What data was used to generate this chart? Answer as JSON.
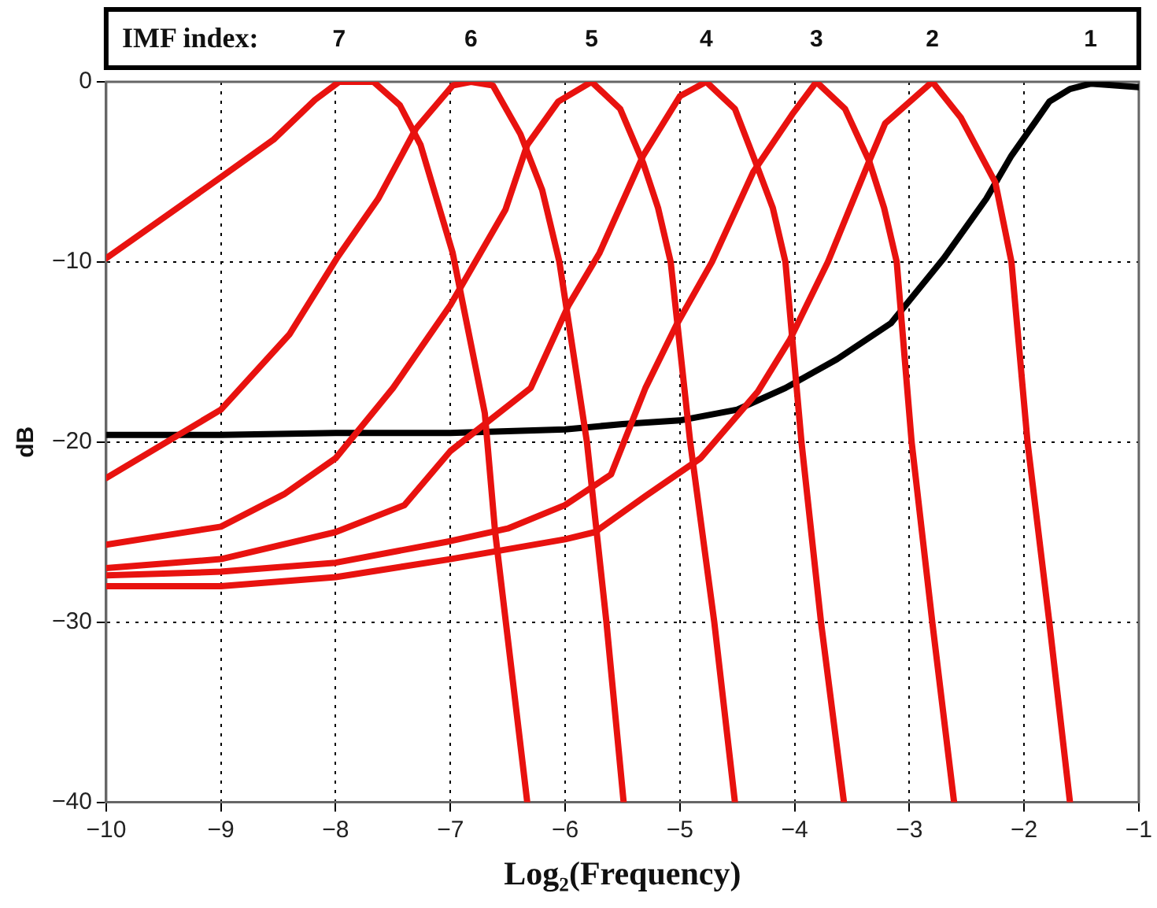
{
  "chart_data": {
    "type": "line",
    "xlabel": "Log₂(Frequency)",
    "ylabel": "dB",
    "xlim": [
      -10,
      -1
    ],
    "xticks": [
      -10,
      -9,
      -8,
      -7,
      -6,
      -5,
      -4,
      -3,
      -2,
      -1
    ],
    "ylim": [
      -40,
      0
    ],
    "yticks": [
      -40,
      -30,
      -20,
      -10,
      0
    ],
    "grid": true,
    "legend": false,
    "marker": "none",
    "line_style": "solid",
    "annotations": [
      "IMF index:",
      "7",
      "6",
      "5",
      "4",
      "3",
      "2",
      "1"
    ],
    "series": [
      {
        "color": "#e8120f",
        "x": [
          -10,
          -9,
          -8.54,
          -8.18,
          -7.97,
          -7.67,
          -7.44,
          -7.26,
          -6.98,
          -6.7,
          -6.61,
          -6.33
        ],
        "values": [
          -9.8,
          -5.3,
          -3.2,
          -1,
          0,
          0,
          -1.3,
          -3.5,
          -9.5,
          -18.4,
          -25,
          -40
        ]
      },
      {
        "color": "#e8120f",
        "x": [
          -10,
          -9,
          -8.4,
          -7.99,
          -7.63,
          -7.3,
          -6.98,
          -6.82,
          -6.63,
          -6.39,
          -6.2,
          -6.05,
          -5.81,
          -5.64,
          -5.49
        ],
        "values": [
          -22,
          -18.2,
          -14,
          -9.8,
          -6.5,
          -2.6,
          -0.2,
          0,
          -0.2,
          -2.9,
          -6,
          -10,
          -20,
          -30,
          -40
        ]
      },
      {
        "color": "#e8120f",
        "x": [
          -10,
          -9,
          -8.45,
          -8,
          -7.5,
          -7,
          -6.52,
          -6.33,
          -6.06,
          -5.77,
          -5.52,
          -5.32,
          -5.19,
          -5.08,
          -4.91,
          -4.7,
          -4.52
        ],
        "values": [
          -25.7,
          -24.7,
          -22.9,
          -20.9,
          -17,
          -12.4,
          -7.1,
          -3.5,
          -1.1,
          0,
          -1.5,
          -4.5,
          -7,
          -10,
          -20,
          -30,
          -40
        ]
      },
      {
        "color": "#e8120f",
        "x": [
          -10,
          -9,
          -8,
          -7.4,
          -7,
          -6.3,
          -5.97,
          -5.7,
          -5.32,
          -5,
          -4.77,
          -4.52,
          -4.32,
          -4.19,
          -4.08,
          -3.94,
          -3.77,
          -3.57
        ],
        "values": [
          -27,
          -26.5,
          -25,
          -23.5,
          -20.5,
          -17,
          -12.4,
          -9.5,
          -4.1,
          -0.8,
          0,
          -1.5,
          -4.8,
          -7,
          -10,
          -20,
          -30,
          -40
        ]
      },
      {
        "color": "#e8120f",
        "x": [
          -10,
          -9,
          -8,
          -7,
          -6.5,
          -6,
          -5.6,
          -5.3,
          -5.03,
          -4.72,
          -4.36,
          -4.02,
          -3.81,
          -3.56,
          -3.35,
          -3.22,
          -3.11,
          -2.98,
          -2.8,
          -2.61
        ],
        "values": [
          -27.4,
          -27.2,
          -26.7,
          -25.5,
          -24.8,
          -23.5,
          -21.8,
          -17,
          -13.5,
          -10,
          -5,
          -1.8,
          0,
          -1.5,
          -4.4,
          -7,
          -10,
          -20,
          -30,
          -40
        ]
      },
      {
        "color": "#e8120f",
        "x": [
          -10,
          -9,
          -8,
          -7,
          -6,
          -5.74,
          -5.3,
          -4.82,
          -4.32,
          -4.04,
          -3.71,
          -3.35,
          -3.21,
          -2.8,
          -2.55,
          -2.25,
          -2.11,
          -1.97,
          -1.78,
          -1.6
        ],
        "values": [
          -28,
          -28,
          -27.5,
          -26.5,
          -25.4,
          -25,
          -23,
          -20.9,
          -17.2,
          -14.3,
          -10,
          -4.4,
          -2.3,
          0,
          -2,
          -5.6,
          -10,
          -20,
          -30,
          -40
        ]
      },
      {
        "color": "#000000",
        "x": [
          -10,
          -9,
          -8,
          -7,
          -6.5,
          -6,
          -5.5,
          -5,
          -4.5,
          -4.08,
          -3.63,
          -3.16,
          -2.7,
          -2.33,
          -2.11,
          -1.9,
          -1.78,
          -1.6,
          -1.42,
          -1
        ],
        "values": [
          -19.6,
          -19.6,
          -19.5,
          -19.5,
          -19.4,
          -19.3,
          -19,
          -18.8,
          -18.2,
          -17,
          -15.4,
          -13.4,
          -9.8,
          -6.5,
          -4.1,
          -2.2,
          -1.1,
          -0.4,
          -0.1,
          -0.3
        ]
      }
    ]
  }
}
